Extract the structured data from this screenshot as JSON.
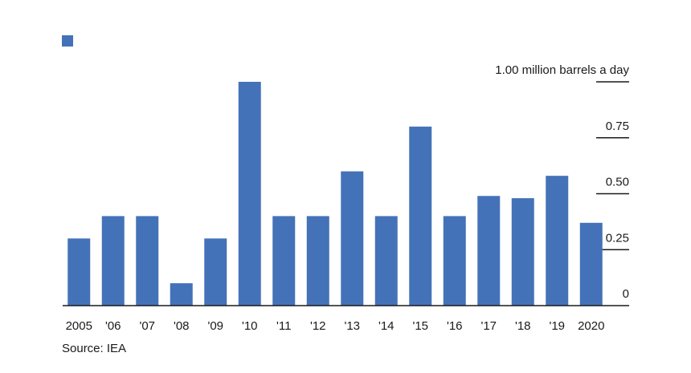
{
  "chart_data": {
    "type": "bar",
    "title": "",
    "legend": [
      {
        "label": "",
        "color": "#4472b8"
      }
    ],
    "categories": [
      "2005",
      "'06",
      "'07",
      "'08",
      "'09",
      "'10",
      "'11",
      "'12",
      "'13",
      "'14",
      "'15",
      "'16",
      "'17",
      "'18",
      "'19",
      "2020"
    ],
    "values": [
      0.3,
      0.4,
      0.4,
      0.1,
      0.3,
      1.0,
      0.4,
      0.4,
      0.6,
      0.4,
      0.8,
      0.4,
      0.49,
      0.48,
      0.58,
      0.37
    ],
    "y_ticks": [
      {
        "value": 0,
        "label": "0"
      },
      {
        "value": 0.25,
        "label": "0.25"
      },
      {
        "value": 0.5,
        "label": "0.50"
      },
      {
        "value": 0.75,
        "label": "0.75"
      },
      {
        "value": 1.0,
        "label": "1.00 million barrels a day"
      }
    ],
    "ylim": [
      0,
      1.0
    ],
    "y_axis_position": "right",
    "grid": false,
    "bar_color": "#4472b8"
  },
  "footer": {
    "source": "Source: IEA"
  }
}
